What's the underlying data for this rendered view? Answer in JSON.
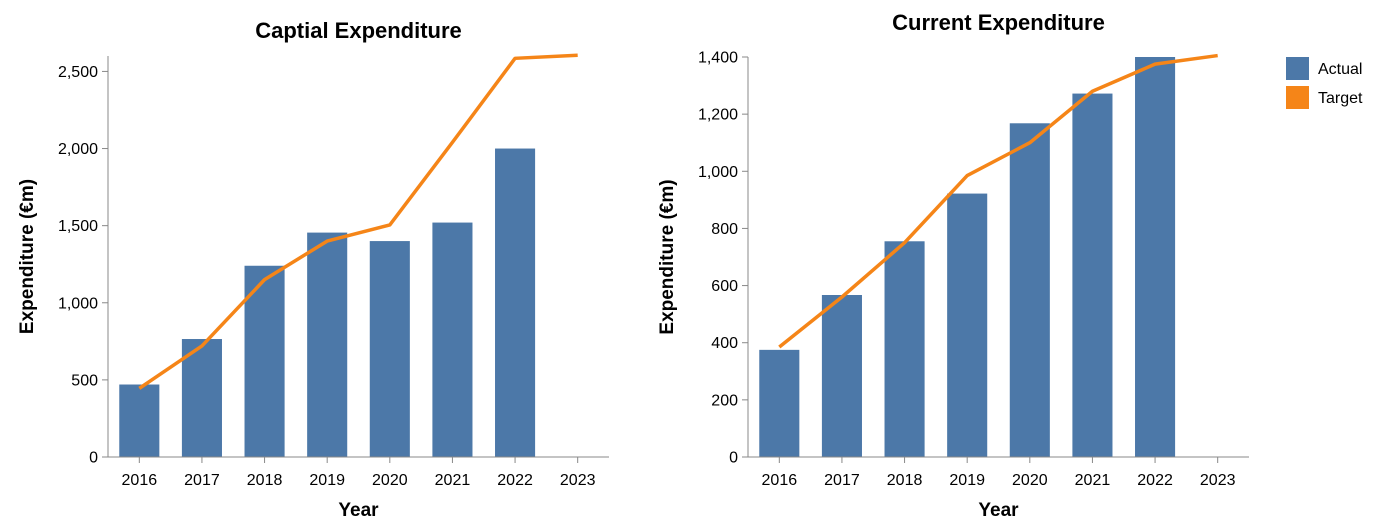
{
  "colors": {
    "actual": "#4c78a8",
    "target": "#f58518"
  },
  "legend": {
    "position": "top-right",
    "items": [
      {
        "label": "Actual",
        "color": "#4c78a8"
      },
      {
        "label": "Target",
        "color": "#f58518"
      }
    ]
  },
  "chart_data": [
    {
      "type": "bar",
      "title": "Captial Expenditure",
      "xlabel": "Year",
      "ylabel": "Expenditure (€m)",
      "categories": [
        "2016",
        "2017",
        "2018",
        "2019",
        "2020",
        "2021",
        "2022",
        "2023"
      ],
      "ylim": [
        0,
        2600
      ],
      "yticks": [
        0,
        500,
        1000,
        1500,
        2000,
        2500
      ],
      "ytick_labels": [
        "0",
        "500",
        "1,000",
        "1,500",
        "2,000",
        "2,500"
      ],
      "grid": false,
      "series": [
        {
          "name": "Actual",
          "type": "bar",
          "values": [
            470,
            765,
            1240,
            1455,
            1400,
            1520,
            2000,
            null
          ]
        },
        {
          "name": "Target",
          "type": "line",
          "values": [
            445,
            720,
            1150,
            1400,
            1505,
            2040,
            2585,
            2605
          ]
        }
      ]
    },
    {
      "type": "bar",
      "title": "Current Expenditure",
      "xlabel": "Year",
      "ylabel": "Expenditure (€m)",
      "categories": [
        "2016",
        "2017",
        "2018",
        "2019",
        "2020",
        "2021",
        "2022",
        "2023"
      ],
      "ylim": [
        0,
        1400
      ],
      "yticks": [
        0,
        200,
        400,
        600,
        800,
        1000,
        1200,
        1400
      ],
      "ytick_labels": [
        "0",
        "200",
        "400",
        "600",
        "800",
        "1,000",
        "1,200",
        "1,400"
      ],
      "grid": false,
      "series": [
        {
          "name": "Actual",
          "type": "bar",
          "values": [
            375,
            567,
            755,
            922,
            1168,
            1272,
            1400,
            null
          ]
        },
        {
          "name": "Target",
          "type": "line",
          "values": [
            385,
            560,
            750,
            985,
            1100,
            1280,
            1375,
            1405
          ]
        }
      ]
    }
  ]
}
